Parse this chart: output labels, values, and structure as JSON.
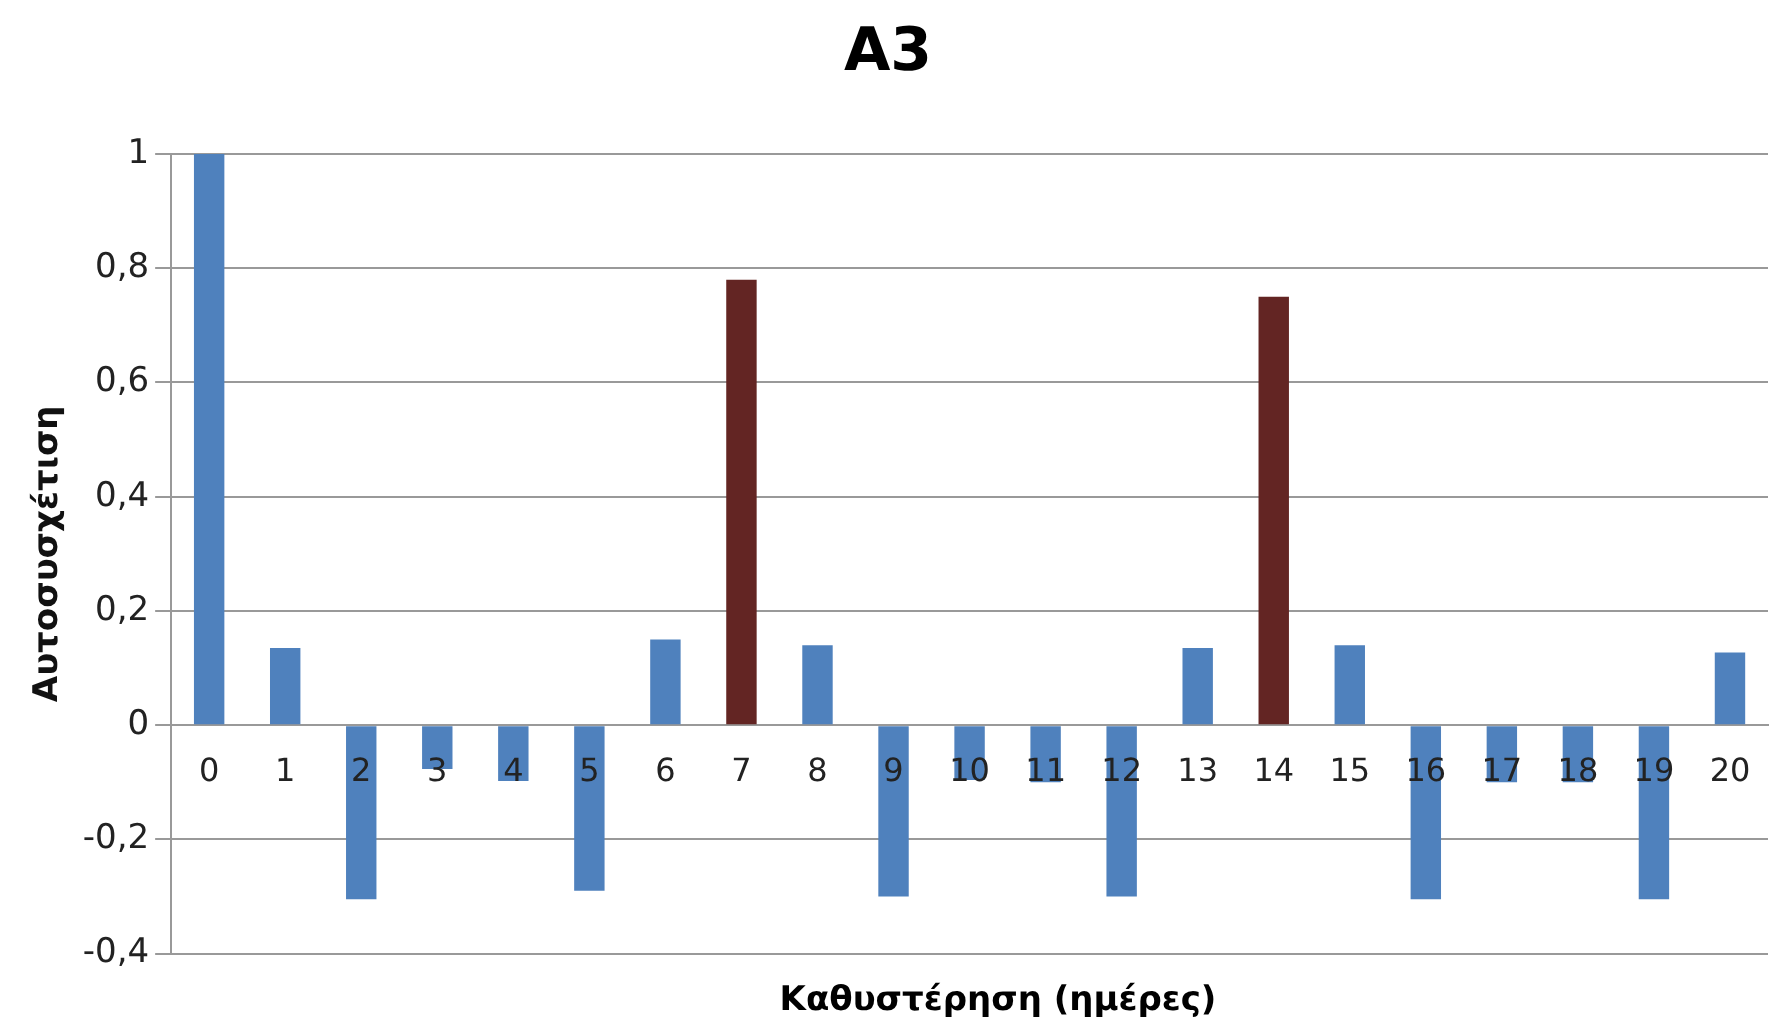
{
  "chart_data": {
    "type": "bar",
    "title": "A3",
    "xlabel": "Καθυστέρηση (ημέρες)",
    "ylabel": "Αυτοσυσχέτιση",
    "categories": [
      "0",
      "1",
      "2",
      "3",
      "4",
      "5",
      "6",
      "7",
      "8",
      "9",
      "10",
      "11",
      "12",
      "13",
      "14",
      "15",
      "16",
      "17",
      "18",
      "19",
      "20"
    ],
    "values": [
      1,
      0.135,
      -0.305,
      -0.077,
      -0.098,
      -0.29,
      0.15,
      0.78,
      0.14,
      -0.3,
      -0.096,
      -0.1,
      -0.3,
      0.135,
      0.75,
      0.14,
      -0.305,
      -0.1,
      -0.1,
      -0.305,
      0.127
    ],
    "colors": [
      "#4f81bd",
      "#4f81bd",
      "#4f81bd",
      "#4f81bd",
      "#4f81bd",
      "#4f81bd",
      "#4f81bd",
      "#632523",
      "#4f81bd",
      "#4f81bd",
      "#4f81bd",
      "#4f81bd",
      "#4f81bd",
      "#4f81bd",
      "#632523",
      "#4f81bd",
      "#4f81bd",
      "#4f81bd",
      "#4f81bd",
      "#4f81bd",
      "#4f81bd"
    ],
    "ylim": [
      -0.4,
      1
    ],
    "yticks": [
      {
        "value": -0.4,
        "label": "-0,4"
      },
      {
        "value": -0.2,
        "label": "-0,2"
      },
      0,
      {
        "value": 0.2,
        "label": "0,2"
      },
      {
        "value": 0.4,
        "label": "0,4"
      },
      {
        "value": 0.6,
        "label": "0,6"
      },
      {
        "value": 0.8,
        "label": "0,8"
      },
      1
    ],
    "grid": "y",
    "legend": false
  }
}
